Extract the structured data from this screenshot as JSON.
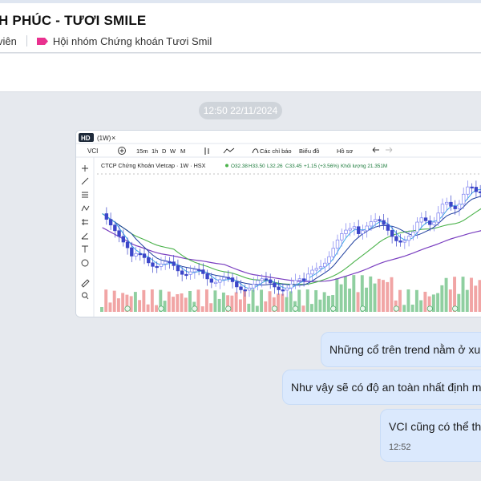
{
  "header": {
    "group_name": "H PHÚC - TƯƠI SMILE",
    "member_text": "viên",
    "community_label": "Hội nhóm Chứng khoán Tươi Smil",
    "tag_color": "#e9318f",
    "tag_icon": "label-tag-icon"
  },
  "messages": {
    "timestamp_chip": "12:50 22/11/2024",
    "bubbles": [
      {
        "text": "Những cổ trên trend nằm ở xu h"
      },
      {
        "text": "Như vậy sẽ có độ an toàn nhất định mà"
      },
      {
        "text": "VCI cũng có thể tha",
        "time": "12:52"
      }
    ]
  },
  "screenshot": {
    "badge": "HD",
    "tab_label": "(1W)",
    "tab_close": "×",
    "symbol": "VCI",
    "plus_icon": "add-circle-icon",
    "intervals": [
      "15m",
      "1h",
      "D",
      "W",
      "M"
    ],
    "toolbar_items": [
      "Các chỉ báo",
      "Biểu đồ",
      "Hồ sơ"
    ],
    "legend_title": "CTCP Chứng Khoán Vietcap · 1W · HSX",
    "ohlc": {
      "o": "O32.38",
      "h": "H33.50",
      "l": "L32.26",
      "c": "C33.45",
      "chg": "+1.15 (+3.56%)",
      "vol": "Khối lượng 21.351M"
    },
    "drawing_tools": [
      "crosshair-icon",
      "trendline-icon",
      "fib-icon",
      "pattern-icon",
      "measure-icon",
      "brush-icon",
      "text-icon",
      "emoji-icon",
      "ruler-icon",
      "zoom-icon"
    ],
    "colors": {
      "up": "#7b7ff0",
      "down": "#3c46c9",
      "vol_up": "#8fcfa0",
      "vol_down": "#f1a5a5",
      "ma_fast": "#3ea9e6",
      "ma_mid": "#1f3f9e",
      "ma_slow": "#4cb34c",
      "ma_long": "#7a3fc0"
    }
  }
}
